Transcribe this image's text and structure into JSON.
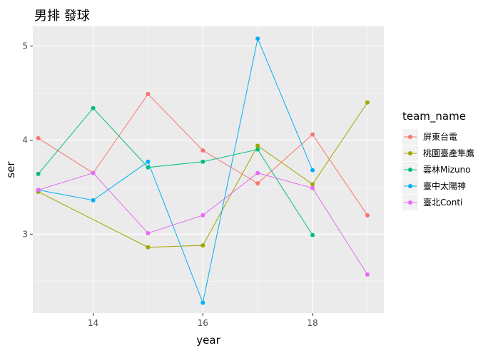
{
  "chart_data": {
    "type": "line",
    "title": "男排 發球",
    "xlabel": "year",
    "ylabel": "ser",
    "xlim": [
      12.9,
      19.3
    ],
    "ylim": [
      2.16,
      5.21
    ],
    "x_ticks": [
      14,
      16,
      18
    ],
    "x_tick_labels": [
      "14",
      "16",
      "18"
    ],
    "y_ticks": [
      3,
      4,
      5
    ],
    "y_tick_labels": [
      "3",
      "4",
      "5"
    ],
    "grid": true,
    "legend": {
      "title": "team_name",
      "position": "right"
    },
    "series": [
      {
        "name": "屏東台電",
        "color": "#F8766D",
        "points": [
          [
            13,
            4.02
          ],
          [
            14,
            3.65
          ],
          [
            15,
            4.49
          ],
          [
            16,
            3.89
          ],
          [
            17,
            3.54
          ],
          [
            18,
            4.06
          ],
          [
            19,
            3.2
          ]
        ]
      },
      {
        "name": "桃園臺產隼鷹",
        "color": "#A3A500",
        "points": [
          [
            13,
            3.45
          ],
          [
            15,
            2.86
          ],
          [
            16,
            2.88
          ],
          [
            17,
            3.94
          ],
          [
            18,
            3.53
          ],
          [
            19,
            4.4
          ]
        ]
      },
      {
        "name": "雲林Mizuno",
        "color": "#00BF7D",
        "points": [
          [
            13,
            3.64
          ],
          [
            14,
            4.34
          ],
          [
            15,
            3.71
          ],
          [
            16,
            3.77
          ],
          [
            17,
            3.9
          ],
          [
            18,
            2.99
          ]
        ]
      },
      {
        "name": "臺中太陽神",
        "color": "#00B0F6",
        "points": [
          [
            13,
            3.47
          ],
          [
            14,
            3.36
          ],
          [
            15,
            3.77
          ],
          [
            16,
            2.27
          ],
          [
            17,
            5.08
          ],
          [
            18,
            3.68
          ]
        ]
      },
      {
        "name": "臺北Conti",
        "color": "#E76BF3",
        "points": [
          [
            13,
            3.47
          ],
          [
            14,
            3.65
          ],
          [
            15,
            3.01
          ],
          [
            16,
            3.2
          ],
          [
            17,
            3.65
          ],
          [
            18,
            3.49
          ],
          [
            19,
            2.57
          ]
        ]
      }
    ]
  }
}
